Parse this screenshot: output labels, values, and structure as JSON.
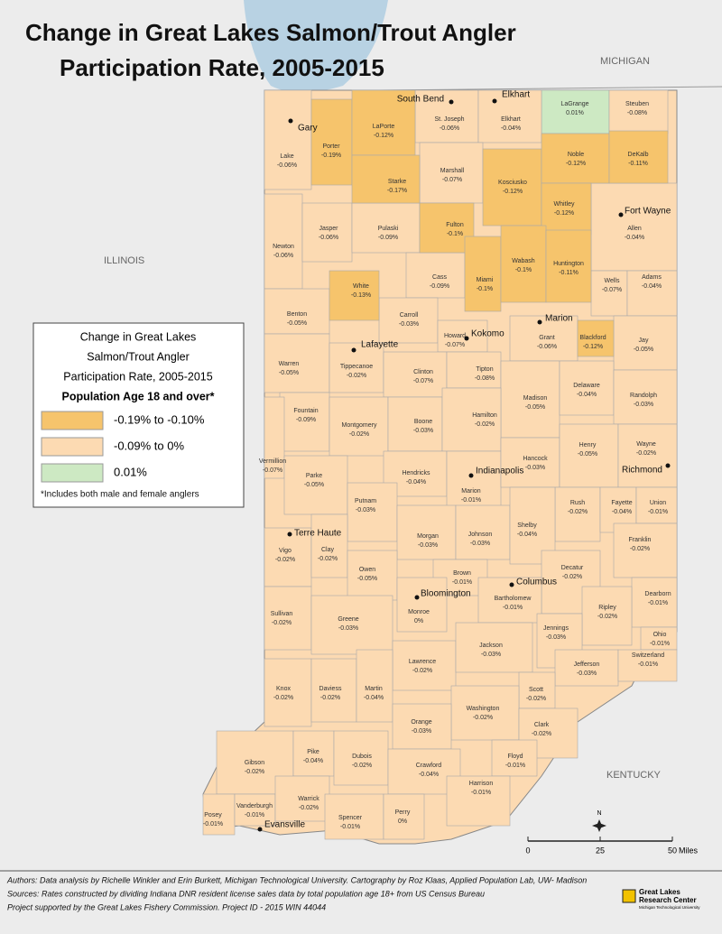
{
  "title": [
    "Change in Great Lakes Salmon/Trout Angler",
    "Participation Rate, 2005-2015"
  ],
  "regions": [
    "MICHIGAN",
    "ILLINOIS",
    "KENTUCKY"
  ],
  "cities": [
    "Gary",
    "South Bend",
    "Elkhart",
    "Fort Wayne",
    "Marion",
    "Kokomo",
    "Lafayette",
    "Indianapolis",
    "Richmond",
    "Terre Haute",
    "Bloomington",
    "Columbus",
    "Evansville"
  ],
  "counties": [
    {
      "name": "Lake",
      "value": {
        "value": -0.06,
        "label": "-0.06%"
      }
    },
    {
      "name": "Porter",
      "value": {
        "value": -0.19,
        "label": "-0.19%"
      }
    },
    {
      "name": "LaPorte",
      "value": {
        "value": -0.12,
        "label": "-0.12%"
      }
    },
    {
      "name": "St. Joseph",
      "value": {
        "value": -0.06,
        "label": "-0.06%"
      }
    },
    {
      "name": "Elkhart",
      "value": {
        "value": -0.04,
        "label": "-0.04%"
      }
    },
    {
      "name": "LaGrange",
      "value": {
        "value": 0.01,
        "label": "0.01%"
      }
    },
    {
      "name": "Steuben",
      "value": {
        "value": -0.08,
        "label": "-0.08%"
      }
    },
    {
      "name": "Starke",
      "value": {
        "value": -0.17,
        "label": "-0.17%"
      }
    },
    {
      "name": "Marshall",
      "value": {
        "value": -0.07,
        "label": "-0.07%"
      }
    },
    {
      "name": "Kosciusko",
      "value": {
        "value": -0.12,
        "label": "-0.12%"
      }
    },
    {
      "name": "Noble",
      "value": {
        "value": -0.12,
        "label": "-0.12%"
      }
    },
    {
      "name": "DeKalb",
      "value": {
        "value": -0.11,
        "label": "-0.11%"
      }
    },
    {
      "name": "Whitley",
      "value": {
        "value": -0.12,
        "label": "-0.12%"
      }
    },
    {
      "name": "Allen",
      "value": {
        "value": -0.04,
        "label": "-0.04%"
      }
    },
    {
      "name": "Newton",
      "value": {
        "value": -0.06,
        "label": "-0.06%"
      }
    },
    {
      "name": "Jasper",
      "value": {
        "value": -0.06,
        "label": "-0.06%"
      }
    },
    {
      "name": "Pulaski",
      "value": {
        "value": -0.09,
        "label": "-0.09%"
      }
    },
    {
      "name": "Fulton",
      "value": {
        "value": -0.1,
        "label": "-0.1%"
      }
    },
    {
      "name": "Cass",
      "value": {
        "value": -0.09,
        "label": "-0.09%"
      }
    },
    {
      "name": "Miami",
      "value": {
        "value": -0.1,
        "label": "-0.1%"
      }
    },
    {
      "name": "Wabash",
      "value": {
        "value": -0.1,
        "label": "-0.1%"
      }
    },
    {
      "name": "Huntington",
      "value": {
        "value": -0.11,
        "label": "-0.11%"
      }
    },
    {
      "name": "Wells",
      "value": {
        "value": -0.07,
        "label": "-0.07%"
      }
    },
    {
      "name": "Adams",
      "value": {
        "value": -0.04,
        "label": "-0.04%"
      }
    },
    {
      "name": "White",
      "value": {
        "value": -0.13,
        "label": "-0.13%"
      }
    },
    {
      "name": "Benton",
      "value": {
        "value": -0.05,
        "label": "-0.05%"
      }
    },
    {
      "name": "Carroll",
      "value": {
        "value": -0.03,
        "label": "-0.03%"
      }
    },
    {
      "name": "Howard",
      "value": {
        "value": -0.07,
        "label": "-0.07%"
      }
    },
    {
      "name": "Grant",
      "value": {
        "value": -0.06,
        "label": "-0.06%"
      }
    },
    {
      "name": "Blackford",
      "value": {
        "value": -0.12,
        "label": "-0.12%"
      }
    },
    {
      "name": "Jay",
      "value": {
        "value": -0.05,
        "label": "-0.05%"
      }
    },
    {
      "name": "Warren",
      "value": {
        "value": -0.05,
        "label": "-0.05%"
      }
    },
    {
      "name": "Tippecanoe",
      "value": {
        "value": -0.02,
        "label": "-0.02%"
      }
    },
    {
      "name": "Clinton",
      "value": {
        "value": -0.07,
        "label": "-0.07%"
      }
    },
    {
      "name": "Tipton",
      "value": {
        "value": -0.08,
        "label": "-0.08%"
      }
    },
    {
      "name": "Madison",
      "value": {
        "value": -0.05,
        "label": "-0.05%"
      }
    },
    {
      "name": "Delaware",
      "value": {
        "value": -0.04,
        "label": "-0.04%"
      }
    },
    {
      "name": "Randolph",
      "value": {
        "value": -0.03,
        "label": "-0.03%"
      }
    },
    {
      "name": "Fountain",
      "value": {
        "value": -0.09,
        "label": "-0.09%"
      }
    },
    {
      "name": "Montgomery",
      "value": {
        "value": -0.02,
        "label": "-0.02%"
      }
    },
    {
      "name": "Boone",
      "value": {
        "value": -0.03,
        "label": "-0.03%"
      }
    },
    {
      "name": "Hamilton",
      "value": {
        "value": -0.02,
        "label": "-0.02%"
      }
    },
    {
      "name": "Vermillion",
      "value": {
        "value": -0.07,
        "label": "-0.07%"
      }
    },
    {
      "name": "Parke",
      "value": {
        "value": -0.05,
        "label": "-0.05%"
      }
    },
    {
      "name": "Hendricks",
      "value": {
        "value": -0.04,
        "label": "-0.04%"
      }
    },
    {
      "name": "Marion",
      "value": {
        "value": -0.01,
        "label": "-0.01%"
      }
    },
    {
      "name": "Hancock",
      "value": {
        "value": -0.03,
        "label": "-0.03%"
      }
    },
    {
      "name": "Henry",
      "value": {
        "value": -0.05,
        "label": "-0.05%"
      }
    },
    {
      "name": "Wayne",
      "value": {
        "value": -0.02,
        "label": "-0.02%"
      }
    },
    {
      "name": "Putnam",
      "value": {
        "value": -0.03,
        "label": "-0.03%"
      }
    },
    {
      "name": "Rush",
      "value": {
        "value": -0.02,
        "label": "-0.02%"
      }
    },
    {
      "name": "Fayette",
      "value": {
        "value": -0.04,
        "label": "-0.04%"
      }
    },
    {
      "name": "Union",
      "value": {
        "value": -0.01,
        "label": "-0.01%"
      }
    },
    {
      "name": "Vigo",
      "value": {
        "value": -0.02,
        "label": "-0.02%"
      }
    },
    {
      "name": "Clay",
      "value": {
        "value": -0.02,
        "label": "-0.02%"
      }
    },
    {
      "name": "Morgan",
      "value": {
        "value": -0.03,
        "label": "-0.03%"
      }
    },
    {
      "name": "Johnson",
      "value": {
        "value": -0.03,
        "label": "-0.03%"
      }
    },
    {
      "name": "Shelby",
      "value": {
        "value": -0.04,
        "label": "-0.04%"
      }
    },
    {
      "name": "Franklin",
      "value": {
        "value": -0.02,
        "label": "-0.02%"
      }
    },
    {
      "name": "Owen",
      "value": {
        "value": -0.05,
        "label": "-0.05%"
      }
    },
    {
      "name": "Brown",
      "value": {
        "value": -0.01,
        "label": "-0.01%"
      }
    },
    {
      "name": "Decatur",
      "value": {
        "value": -0.02,
        "label": "-0.02%"
      }
    },
    {
      "name": "Dearborn",
      "value": {
        "value": -0.01,
        "label": "-0.01%"
      }
    },
    {
      "name": "Monroe",
      "value": {
        "value": 0,
        "label": "0%"
      }
    },
    {
      "name": "Bartholomew",
      "value": {
        "value": -0.01,
        "label": "-0.01%"
      }
    },
    {
      "name": "Sullivan",
      "value": {
        "value": -0.02,
        "label": "-0.02%"
      }
    },
    {
      "name": "Greene",
      "value": {
        "value": -0.03,
        "label": "-0.03%"
      }
    },
    {
      "name": "Ripley",
      "value": {
        "value": -0.02,
        "label": "-0.02%"
      }
    },
    {
      "name": "Jennings",
      "value": {
        "value": -0.03,
        "label": "-0.03%"
      }
    },
    {
      "name": "Ohio",
      "value": {
        "value": -0.01,
        "label": "-0.01%"
      }
    },
    {
      "name": "Lawrence",
      "value": {
        "value": -0.02,
        "label": "-0.02%"
      }
    },
    {
      "name": "Jackson",
      "value": {
        "value": -0.03,
        "label": "-0.03%"
      }
    },
    {
      "name": "Jefferson",
      "value": {
        "value": -0.03,
        "label": "-0.03%"
      }
    },
    {
      "name": "Switzerland",
      "value": {
        "value": -0.01,
        "label": "-0.01%"
      }
    },
    {
      "name": "Knox",
      "value": {
        "value": -0.02,
        "label": "-0.02%"
      }
    },
    {
      "name": "Daviess",
      "value": {
        "value": -0.02,
        "label": "-0.02%"
      }
    },
    {
      "name": "Martin",
      "value": {
        "value": -0.04,
        "label": "-0.04%"
      }
    },
    {
      "name": "Scott",
      "value": {
        "value": -0.02,
        "label": "-0.02%"
      }
    },
    {
      "name": "Washington",
      "value": {
        "value": -0.02,
        "label": "-0.02%"
      }
    },
    {
      "name": "Orange",
      "value": {
        "value": -0.03,
        "label": "-0.03%"
      }
    },
    {
      "name": "Clark",
      "value": {
        "value": -0.02,
        "label": "-0.02%"
      }
    },
    {
      "name": "Gibson",
      "value": {
        "value": -0.02,
        "label": "-0.02%"
      }
    },
    {
      "name": "Pike",
      "value": {
        "value": -0.04,
        "label": "-0.04%"
      }
    },
    {
      "name": "Dubois",
      "value": {
        "value": -0.02,
        "label": "-0.02%"
      }
    },
    {
      "name": "Floyd",
      "value": {
        "value": -0.01,
        "label": "-0.01%"
      }
    },
    {
      "name": "Crawford",
      "value": {
        "value": -0.04,
        "label": "-0.04%"
      }
    },
    {
      "name": "Harrison",
      "value": {
        "value": -0.01,
        "label": "-0.01%"
      }
    },
    {
      "name": "Posey",
      "value": {
        "value": -0.01,
        "label": "-0.01%"
      }
    },
    {
      "name": "Vanderburgh",
      "value": {
        "value": -0.01,
        "label": "-0.01%"
      }
    },
    {
      "name": "Warrick",
      "value": {
        "value": -0.02,
        "label": "-0.02%"
      }
    },
    {
      "name": "Spencer",
      "value": {
        "value": -0.01,
        "label": "-0.01%"
      }
    },
    {
      "name": "Perry",
      "value": {
        "value": 0,
        "label": "0%"
      }
    }
  ],
  "legend": {
    "title": [
      "Change in Great Lakes",
      "Salmon/Trout Angler",
      "Participation Rate, 2005-2015",
      "Population Age 18 and over*"
    ],
    "classes": [
      {
        "range": [
          -0.19,
          -0.1
        ],
        "label": "-0.19% to -0.10%",
        "color": "#f6c46c"
      },
      {
        "range": [
          -0.09,
          0
        ],
        "label": "-0.09% to 0%",
        "color": "#fcdab2"
      },
      {
        "range": [
          0.01,
          0.01
        ],
        "label": "0.01%",
        "color": "#cde9c3"
      }
    ],
    "note": "*Includes both male and female anglers"
  },
  "scale": {
    "ticks": [
      0,
      25,
      50
    ],
    "unit": "Miles"
  },
  "north": "N",
  "credits": [
    "Authors: Data analysis by Richelle Winkler and Erin Burkett, Michigan Technological University. Cartography by Roz Klaas, Applied Population Lab, UW- Madison",
    "Sources: Rates constructed by dividing Indiana DNR resident license sales data by total population age 18+ from US Census Bureau",
    "Project supported by the Great Lakes Fishery Commission. Project ID - 2015 WIN 44044"
  ],
  "logo": [
    "Great Lakes",
    "Research Center",
    "Michigan Technological University"
  ]
}
